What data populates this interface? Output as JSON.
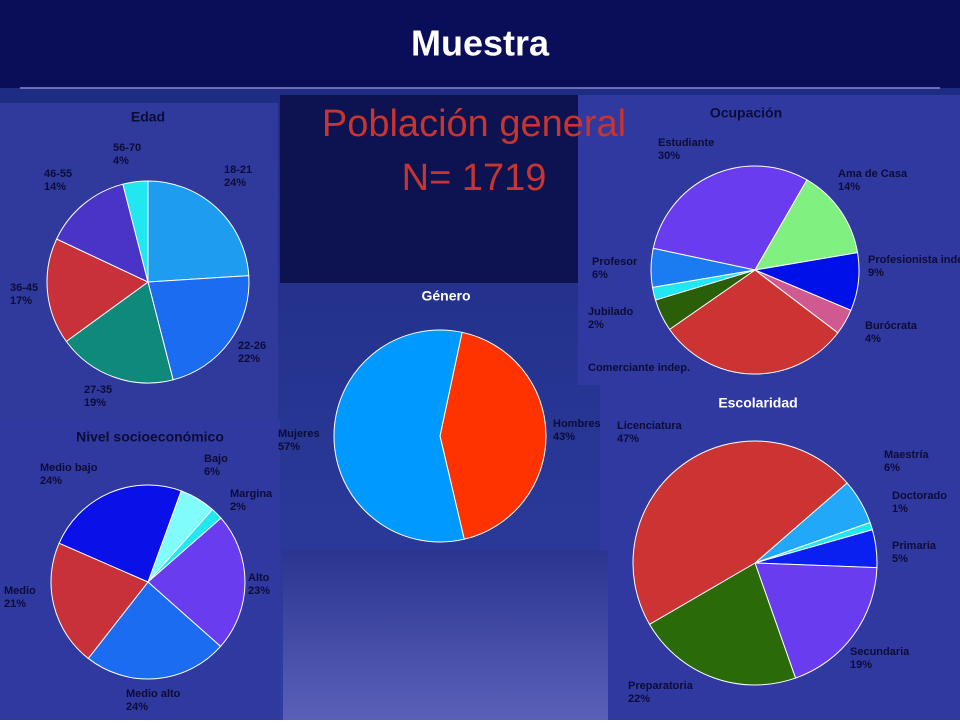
{
  "slide": {
    "title": "Muestra",
    "heading": "Población general",
    "sample": "N= 1719"
  },
  "chart_data": [
    {
      "type": "pie",
      "title": "Edad",
      "categories": [
        "18-21",
        "22-26",
        "27-35",
        "36-45",
        "46-55",
        "56-70"
      ],
      "values": [
        24,
        22,
        19,
        17,
        14,
        4
      ],
      "value_labels": [
        "24%",
        "22%",
        "19%",
        "17%",
        "14%",
        "4%"
      ],
      "colors": [
        "#1e9cf0",
        "#1c6cf2",
        "#0f8a7a",
        "#c8313a",
        "#4a34c8",
        "#22e6f0"
      ]
    },
    {
      "type": "pie",
      "title": "Género",
      "categories": [
        "Hombres",
        "Mujeres"
      ],
      "values": [
        43,
        57
      ],
      "value_labels": [
        "43%",
        "57%"
      ],
      "colors": [
        "#ff3300",
        "#0099ff"
      ]
    },
    {
      "type": "pie",
      "title": "Ocupación",
      "categories": [
        "Estudiante",
        "Ama de Casa",
        "Profesionista indep.",
        "Burócrata",
        null,
        "Comerciante indep.",
        "Jubilado",
        "Profesor"
      ],
      "values": [
        30,
        14,
        9,
        4,
        30,
        5,
        2,
        6
      ],
      "value_labels": [
        "30%",
        "14%",
        "9%",
        "4%",
        null,
        null,
        "2%",
        "6%"
      ],
      "colors": [
        "#6a3cf0",
        "#80f080",
        "#0010e8",
        "#d05a90",
        "#cc3333",
        "#2a5e08",
        "#22e6f0",
        "#1a7cf0"
      ]
    },
    {
      "type": "pie",
      "title": "Nivel socioeconómico",
      "categories": [
        "Bajo",
        "Margina",
        "Alto",
        "Medio alto",
        "Medio",
        "Medio bajo"
      ],
      "values": [
        6,
        2,
        23,
        24,
        21,
        24
      ],
      "value_labels": [
        "6%",
        "2%",
        "23%",
        "24%",
        "21%",
        "24%"
      ],
      "colors": [
        "#80fcfc",
        "#22e6f0",
        "#6a3cf0",
        "#1c6cf2",
        "#c8313a",
        "#0a10e8"
      ]
    },
    {
      "type": "pie",
      "title": "Escolaridad",
      "categories": [
        "Maestría",
        "Doctorado",
        "Primaria",
        "Secundaria",
        "Preparatoria",
        "Licenciatura"
      ],
      "values": [
        6,
        1,
        5,
        19,
        22,
        47
      ],
      "value_labels": [
        "6%",
        "1%",
        "5%",
        "19%",
        "22%",
        "47%"
      ],
      "colors": [
        "#22a8f8",
        "#22e6f0",
        "#0a20f0",
        "#6a3cf0",
        "#2a6a08",
        "#cc3333"
      ]
    }
  ]
}
